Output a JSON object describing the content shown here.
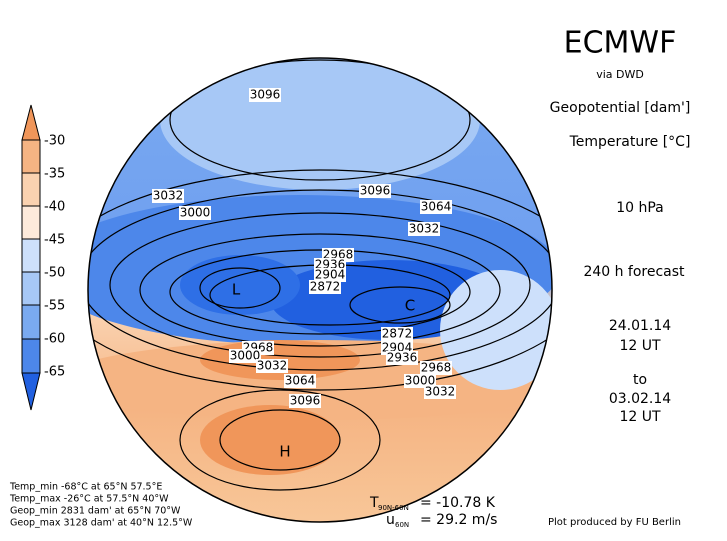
{
  "header": {
    "title": "ECMWF",
    "source": "via DWD",
    "fields": [
      "Geopotential [dam']",
      "Temperature [°C]"
    ],
    "level": "10 hPa",
    "forecast": "240 h forecast",
    "valid_from": [
      "24.01.14",
      "12 UT"
    ],
    "to": "to",
    "valid_to": [
      "03.02.14",
      "12 UT"
    ]
  },
  "colorbar": {
    "labels": [
      "-30",
      "-35",
      "-40",
      "-45",
      "-50",
      "-55",
      "-60",
      "-65"
    ]
  },
  "map": {
    "contour_labels": [
      "3096",
      "3032",
      "3000",
      "3096",
      "3064",
      "3032",
      "2968",
      "2936",
      "2904",
      "2872",
      "2872",
      "2904",
      "2936",
      "2968",
      "3000",
      "3032",
      "2968",
      "3000",
      "3032",
      "3064",
      "3096"
    ],
    "extremes": [
      "L",
      "C",
      "H"
    ]
  },
  "stats": [
    "Temp_min -68°C at 65°N 57.5°E",
    "Temp_max -26°C at 57.5°N 40°W",
    "Geop_min 2831 dam' at 65°N 70°W",
    "Geop_max 3128 dam' at 40°N 12.5°W"
  ],
  "indices": {
    "t_symbol": "T",
    "t_sub": "90N-60N",
    "t_value": "= -10.78 K",
    "u_symbol": "u",
    "u_sub": "60N",
    "u_value": "= 29.2 m/s"
  },
  "credit": "Plot produced by FU Berlin"
}
